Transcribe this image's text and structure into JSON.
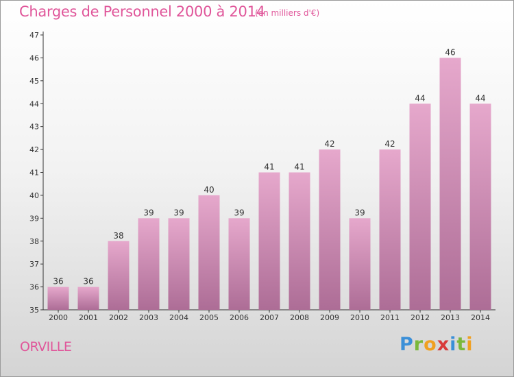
{
  "header": {
    "title": "Charges de Personnel 2000 à 2014",
    "subtitle": "(en milliers d'€)"
  },
  "footer": {
    "town": "ORVILLE",
    "logo": {
      "letters": [
        "P",
        "r",
        "o",
        "x",
        "i",
        "t",
        "i"
      ],
      "colors": [
        "#3a8fd8",
        "#7ab83a",
        "#f0a020",
        "#d83a3a",
        "#3a8fd8",
        "#7ab83a",
        "#f0a020"
      ]
    }
  },
  "colors": {
    "title": "#e0569a",
    "bar_top": "#e6a8cc",
    "bar_bottom": "#ad6d96",
    "axis": "#333333"
  },
  "chart_data": {
    "type": "bar",
    "categories": [
      "2000",
      "2001",
      "2002",
      "2003",
      "2004",
      "2005",
      "2006",
      "2007",
      "2008",
      "2009",
      "2010",
      "2011",
      "2012",
      "2013",
      "2014"
    ],
    "values": [
      36,
      36,
      38,
      39,
      39,
      40,
      39,
      41,
      41,
      42,
      39,
      42,
      44,
      46,
      44
    ],
    "title": "Charges de Personnel 2000 à 2014",
    "ylim": [
      35,
      47
    ],
    "yticks": [
      35,
      36,
      37,
      38,
      39,
      40,
      41,
      42,
      43,
      44,
      45,
      46,
      47
    ],
    "grid": false,
    "legend": "none"
  }
}
